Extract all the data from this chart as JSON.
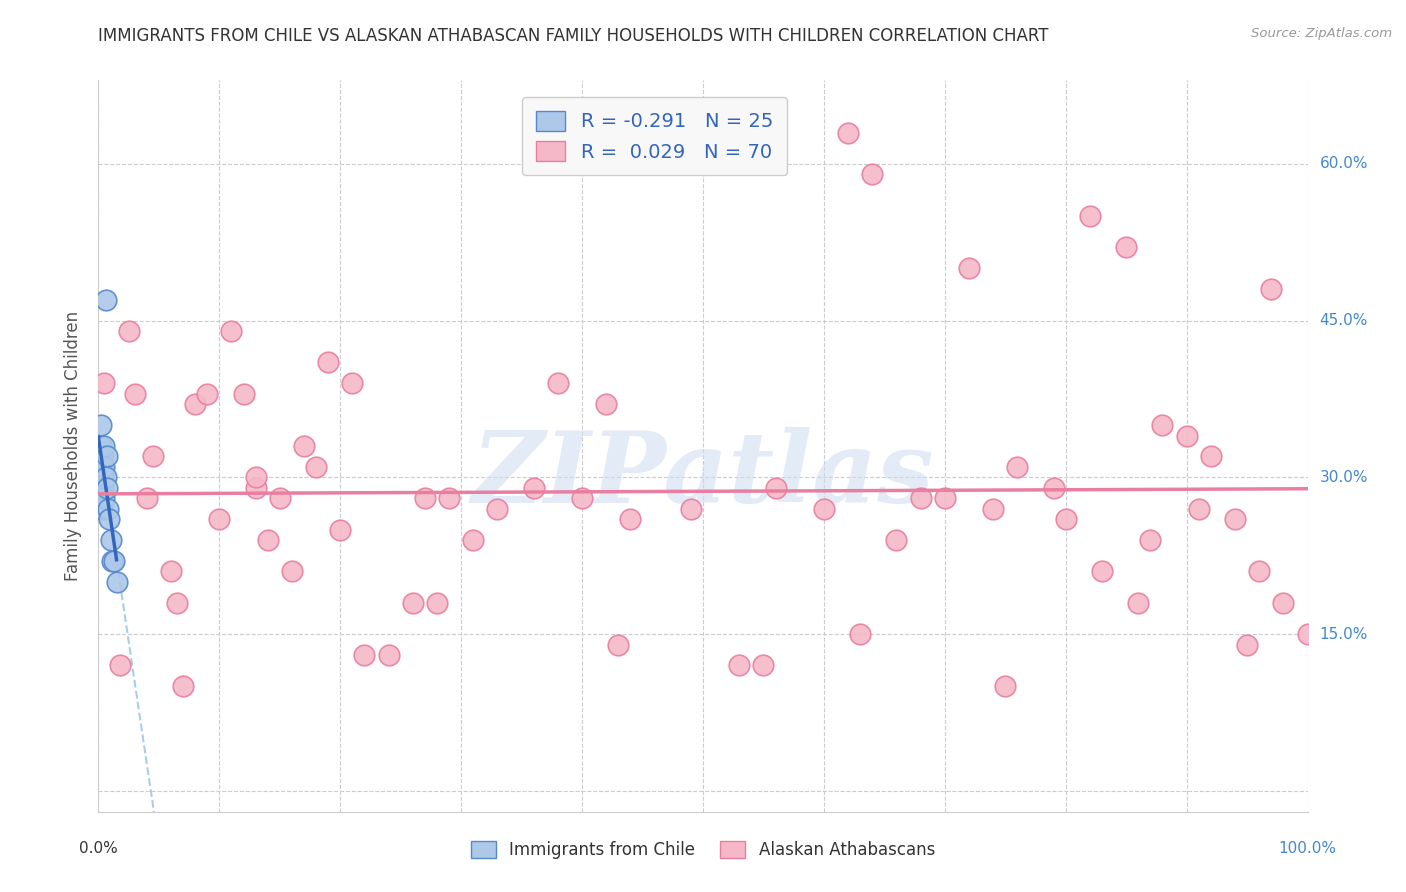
{
  "title": "IMMIGRANTS FROM CHILE VS ALASKAN ATHABASCAN FAMILY HOUSEHOLDS WITH CHILDREN CORRELATION CHART",
  "source": "Source: ZipAtlas.com",
  "ylabel": "Family Households with Children",
  "xlim": [
    0,
    1.0
  ],
  "ylim": [
    -0.02,
    0.68
  ],
  "x_ticks": [
    0.0,
    0.1,
    0.2,
    0.3,
    0.4,
    0.5,
    0.6,
    0.7,
    0.8,
    0.9,
    1.0
  ],
  "y_ticks": [
    0.0,
    0.15,
    0.3,
    0.45,
    0.6
  ],
  "y_tick_labels": [
    "",
    "15.0%",
    "30.0%",
    "45.0%",
    "60.0%"
  ],
  "background_color": "#ffffff",
  "grid_color": "#cccccc",
  "watermark_text": "ZIPatlas",
  "chile_color": "#adc8e8",
  "chile_edge_color": "#5588cc",
  "athabascan_color": "#f5b8c8",
  "athabascan_edge_color": "#e87fa0",
  "chile_R": -0.291,
  "chile_N": 25,
  "athabascan_R": 0.029,
  "athabascan_N": 70,
  "chile_line_color": "#3366bb",
  "athabascan_line_color": "#e87fa0",
  "dashed_line_color": "#aaccee",
  "legend_box_color": "#f8f8f8",
  "legend_box_edge": "#cccccc",
  "title_color": "#333333",
  "axis_label_color": "#555555",
  "tick_label_color_right": "#4488cc",
  "tick_label_color_left": "#333333",
  "chile_scatter_x": [
    0.001,
    0.001,
    0.002,
    0.002,
    0.002,
    0.003,
    0.003,
    0.003,
    0.003,
    0.004,
    0.004,
    0.004,
    0.005,
    0.005,
    0.005,
    0.006,
    0.006,
    0.007,
    0.007,
    0.008,
    0.009,
    0.01,
    0.011,
    0.013,
    0.015
  ],
  "chile_scatter_y": [
    0.3,
    0.28,
    0.33,
    0.32,
    0.35,
    0.31,
    0.3,
    0.29,
    0.27,
    0.32,
    0.3,
    0.29,
    0.33,
    0.31,
    0.28,
    0.47,
    0.3,
    0.32,
    0.29,
    0.27,
    0.26,
    0.24,
    0.22,
    0.22,
    0.2
  ],
  "athabascan_scatter_x": [
    0.005,
    0.018,
    0.025,
    0.03,
    0.04,
    0.045,
    0.06,
    0.065,
    0.07,
    0.08,
    0.09,
    0.1,
    0.11,
    0.12,
    0.13,
    0.14,
    0.16,
    0.17,
    0.18,
    0.19,
    0.2,
    0.21,
    0.22,
    0.24,
    0.26,
    0.27,
    0.28,
    0.29,
    0.31,
    0.33,
    0.36,
    0.38,
    0.4,
    0.42,
    0.44,
    0.49,
    0.53,
    0.56,
    0.6,
    0.62,
    0.64,
    0.66,
    0.68,
    0.7,
    0.72,
    0.74,
    0.76,
    0.79,
    0.82,
    0.85,
    0.86,
    0.88,
    0.9,
    0.92,
    0.94,
    0.96,
    0.97,
    0.98,
    1.0,
    0.13,
    0.15,
    0.43,
    0.55,
    0.63,
    0.75,
    0.8,
    0.83,
    0.87,
    0.91,
    0.95
  ],
  "athabascan_scatter_y": [
    0.39,
    0.12,
    0.44,
    0.38,
    0.28,
    0.32,
    0.21,
    0.18,
    0.1,
    0.37,
    0.38,
    0.26,
    0.44,
    0.38,
    0.29,
    0.24,
    0.21,
    0.33,
    0.31,
    0.41,
    0.25,
    0.39,
    0.13,
    0.13,
    0.18,
    0.28,
    0.18,
    0.28,
    0.24,
    0.27,
    0.29,
    0.39,
    0.28,
    0.37,
    0.26,
    0.27,
    0.12,
    0.29,
    0.27,
    0.63,
    0.59,
    0.24,
    0.28,
    0.28,
    0.5,
    0.27,
    0.31,
    0.29,
    0.55,
    0.52,
    0.18,
    0.35,
    0.34,
    0.32,
    0.26,
    0.21,
    0.48,
    0.18,
    0.15,
    0.3,
    0.28,
    0.14,
    0.12,
    0.15,
    0.1,
    0.26,
    0.21,
    0.24,
    0.27,
    0.14
  ]
}
